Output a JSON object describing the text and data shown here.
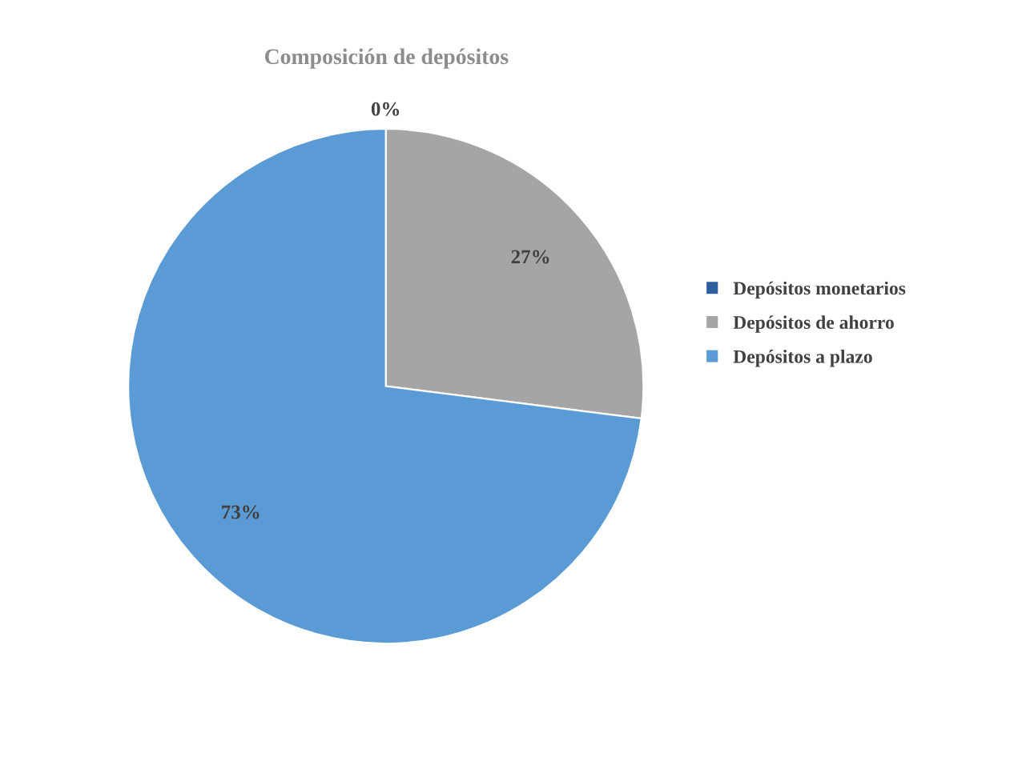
{
  "chart_data": {
    "type": "pie",
    "title": "Composición de depósitos",
    "categories": [
      "Depósitos monetarios",
      "Depósitos de ahorro",
      "Depósitos a plazo"
    ],
    "values": [
      0,
      27,
      73
    ],
    "colors": [
      "#2e5e9e",
      "#a5a5a5",
      "#5b9bd5"
    ],
    "value_labels": [
      "0%",
      "27%",
      "73%"
    ],
    "legend": "right"
  }
}
